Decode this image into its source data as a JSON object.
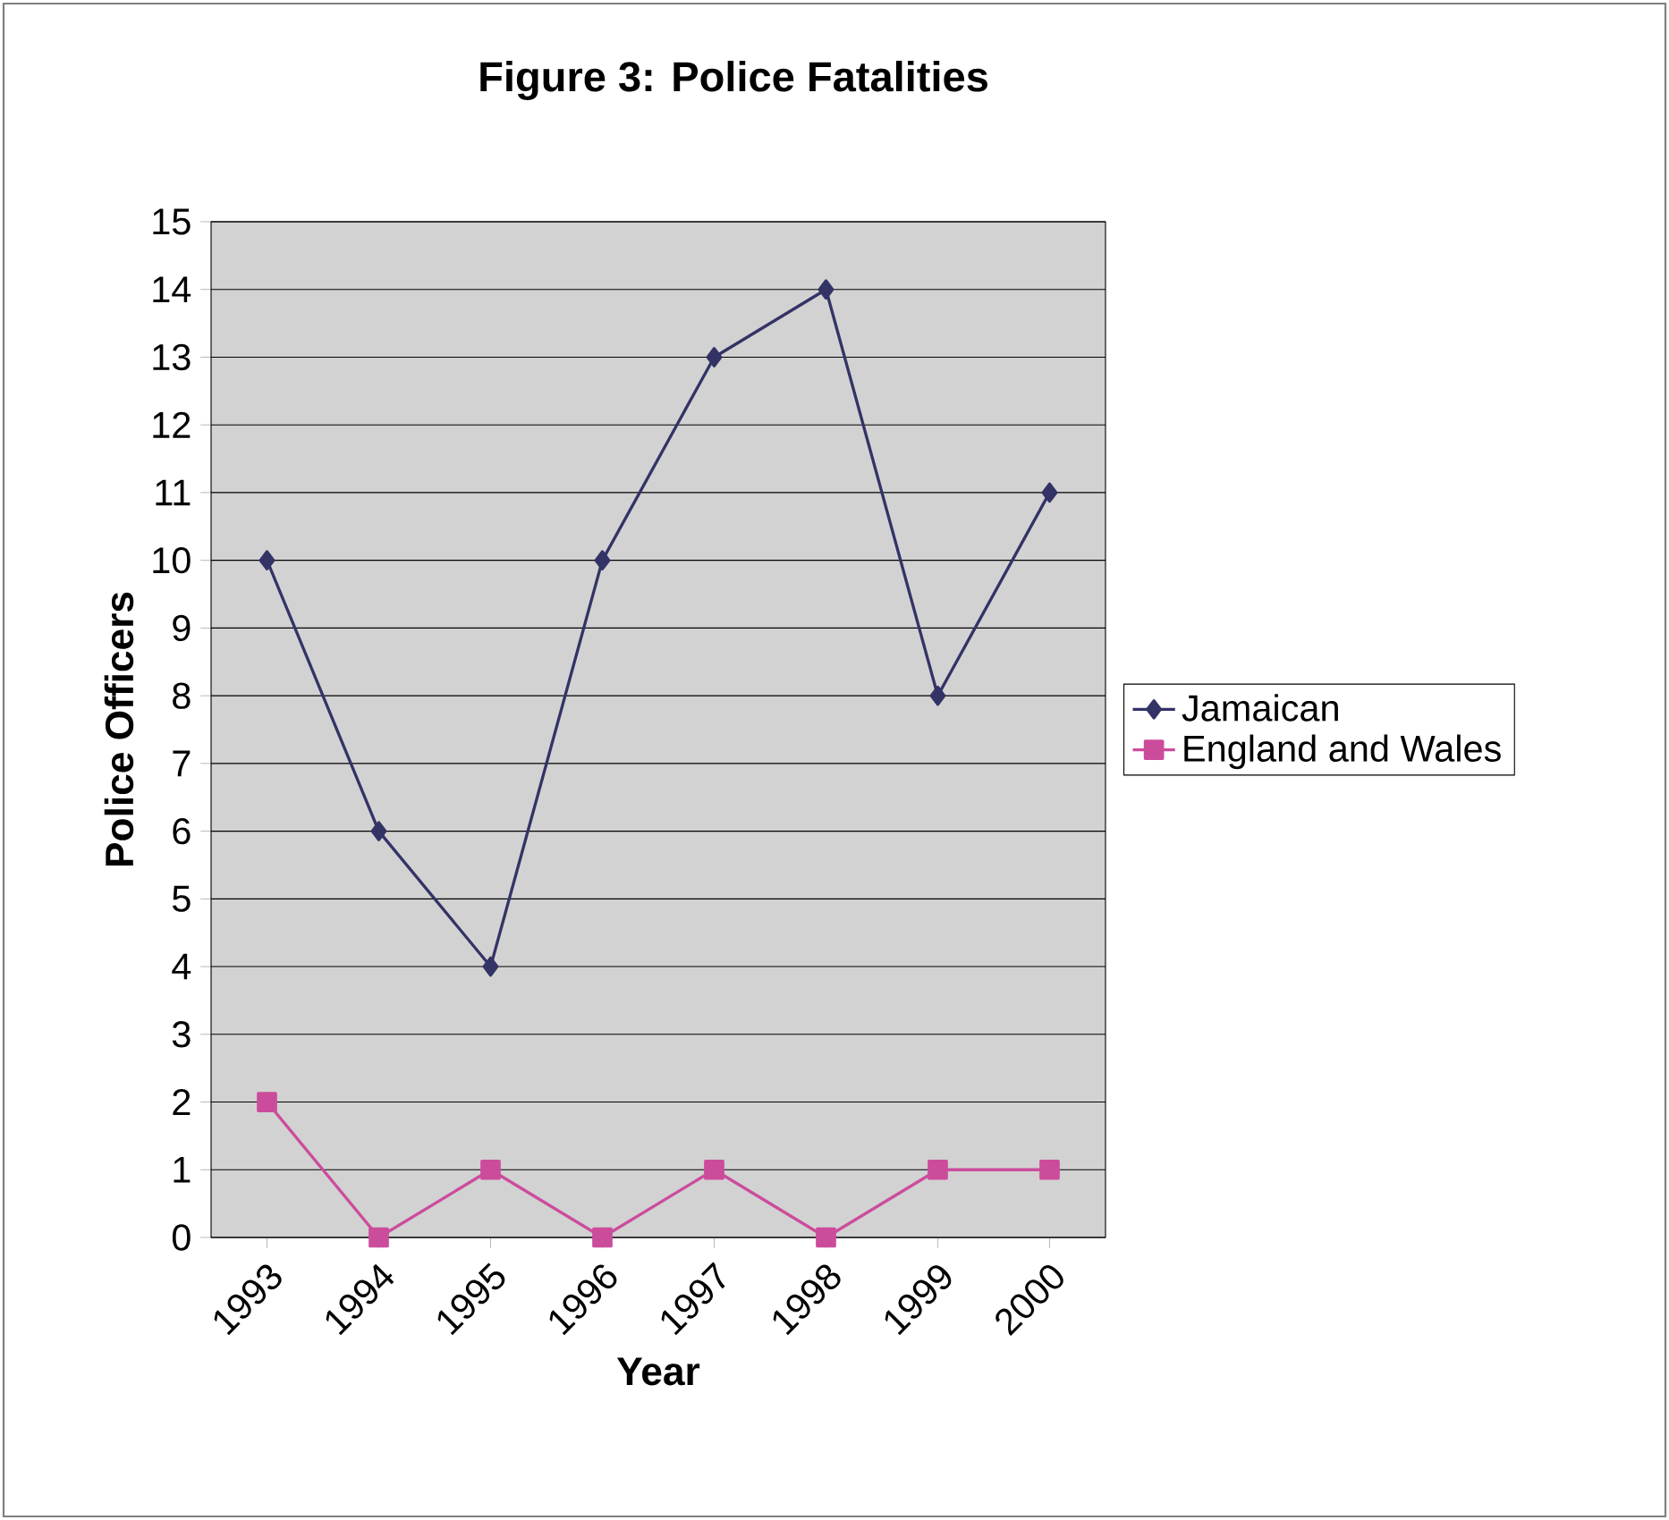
{
  "chart_data": {
    "type": "line",
    "title": "Figure 3: Police Fatalities",
    "xlabel": "Year",
    "ylabel": "Police Officers",
    "categories": [
      "1993",
      "1994",
      "1995",
      "1996",
      "1997",
      "1998",
      "1999",
      "2000"
    ],
    "series": [
      {
        "name": "Jamaican",
        "color": "#333366",
        "marker": "diamond",
        "values": [
          10,
          6,
          4,
          10,
          13,
          14,
          8,
          11
        ]
      },
      {
        "name": "England and Wales",
        "color": "#cc4c9c",
        "marker": "square",
        "values": [
          2,
          0,
          1,
          0,
          1,
          0,
          1,
          1
        ]
      }
    ],
    "ylim": [
      0,
      15
    ],
    "yticks": [
      0,
      1,
      2,
      3,
      4,
      5,
      6,
      7,
      8,
      9,
      10,
      11,
      12,
      13,
      14,
      15
    ],
    "grid": "y",
    "legend": "right",
    "line_style": "solid"
  }
}
